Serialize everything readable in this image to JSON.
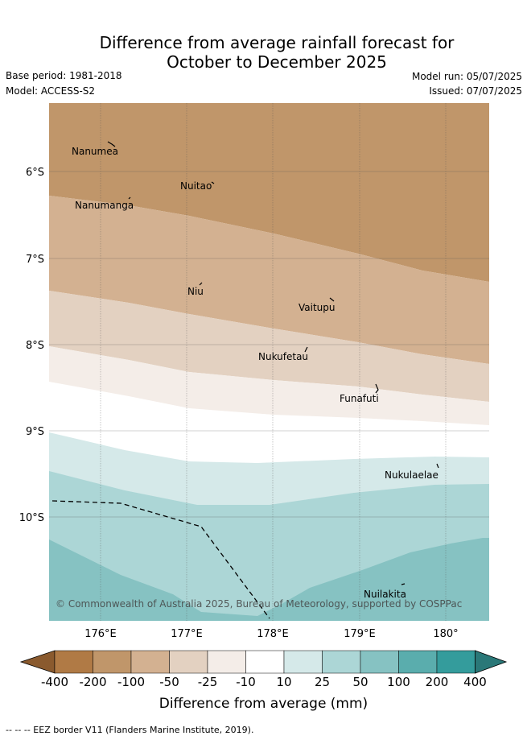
{
  "header": {
    "title_line1": "Difference from average rainfall forecast for",
    "title_line2": "October to December 2025",
    "base_period": "Base period: 1981-2018",
    "model": "Model: ACCESS-S2",
    "model_run": "Model run: 05/07/2025",
    "issued": "Issued: 07/07/2025"
  },
  "map": {
    "lat_labels": [
      "6°S",
      "7°S",
      "8°S",
      "9°S",
      "10°S"
    ],
    "lon_labels": [
      "176°E",
      "177°E",
      "178°E",
      "179°E",
      "180°"
    ],
    "places": [
      "Nanumea",
      "Nuitao",
      "Nanumanga",
      "Niu",
      "Vaitupu",
      "Nukufetau",
      "Funafuti",
      "Nukulaelae",
      "Nuilakita"
    ],
    "copyright": "© Commonwealth of Australia 2025, Bureau of Meteorology, supported by COSPPac"
  },
  "colorbar": {
    "labels": [
      "-400",
      "-200",
      "-100",
      "-50",
      "-25",
      "-10",
      "10",
      "25",
      "50",
      "100",
      "200",
      "400"
    ],
    "colors": [
      "#8a5a2e",
      "#b07a45",
      "#c0966a",
      "#d3b191",
      "#e3d1c1",
      "#f4ede8",
      "#ffffff",
      "#d5e9e9",
      "#acd6d6",
      "#86c2c2",
      "#5aadad",
      "#349c9c",
      "#2a7878"
    ],
    "title": "Difference from average (mm)"
  },
  "footer": {
    "legend": "--  --  -- EEZ border V11 (Flanders Marine Institute, 2019)."
  }
}
